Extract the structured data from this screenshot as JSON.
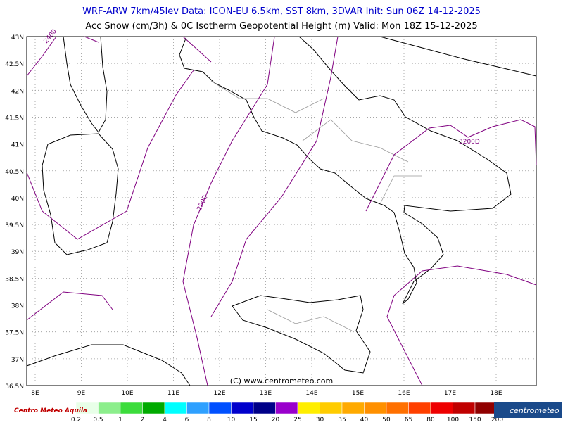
{
  "header": {
    "line1": "WRF-ARW 7km/45lev  Data: ICON-EU 6.5km, SST 8km, 3DVAR  Init: Sun 06Z 14-12-2025",
    "line2": "Acc Snow (cm/3h) & 0C Isotherm Geopotential Height (m)  Valid: Mon 18Z 15-12-2025"
  },
  "map": {
    "lat_labels": [
      "43N",
      "42.5N",
      "42N",
      "41.5N",
      "41N",
      "40.5N",
      "40N",
      "39.5N",
      "39N",
      "38.5N",
      "38N",
      "37.5N",
      "37N",
      "36.5N"
    ],
    "lon_labels": [
      "8E",
      "9E",
      "10E",
      "11E",
      "12E",
      "13E",
      "14E",
      "15E",
      "16E",
      "17E",
      "18E"
    ],
    "contour_labels": [
      "2400",
      "2800",
      "3200D"
    ],
    "copyright": "(C) www.centrometeo.com"
  },
  "legend": {
    "labels": [
      0.2,
      0.5,
      1,
      2,
      4,
      6,
      8,
      10,
      15,
      20,
      25,
      30,
      35,
      40,
      50,
      65,
      80,
      100,
      150,
      200
    ],
    "colors": [
      "#e8ffe8",
      "#8cee8c",
      "#3cdc3c",
      "#00aa00",
      "#00ffff",
      "#2ea0ff",
      "#0050ff",
      "#0000cc",
      "#000088",
      "#9900cc",
      "#ffee00",
      "#ffcc00",
      "#ffaa00",
      "#ff9000",
      "#ff7000",
      "#ff4000",
      "#ee0000",
      "#c00000",
      "#900000",
      "#660000"
    ]
  },
  "logos": {
    "left": "Centro Meteo Aquila",
    "right": "centrometeo"
  }
}
